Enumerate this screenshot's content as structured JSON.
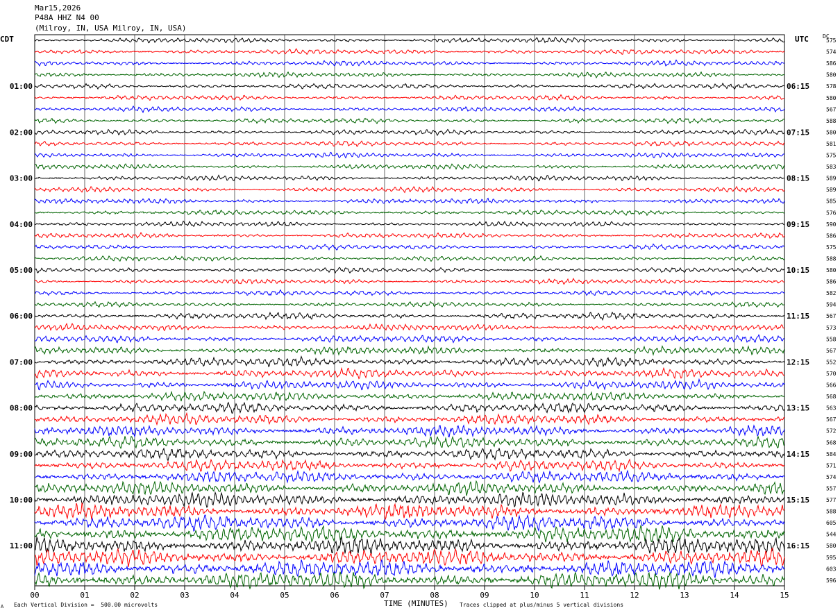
{
  "header": {
    "date": "Mar15,2026",
    "station": "P48A HHZ N4 00",
    "location": "(Milroy, IN, USA Milroy, IN, USA)"
  },
  "left_timezone": "CDT",
  "right_timezone": "UTC",
  "dc_label": "DC",
  "footer": {
    "scale_note": "Each Vertical Division =  500.00 microvolts",
    "clip_note": "Traces clipped at plus/minus 5 vertical divisions",
    "corner_mark": "A"
  },
  "chart_data": {
    "type": "line",
    "title": "",
    "xlabel": "TIME (MINUTES)",
    "ylabel": "",
    "xlim": [
      0,
      15
    ],
    "x_ticks": [
      "00",
      "01",
      "02",
      "03",
      "04",
      "05",
      "06",
      "07",
      "08",
      "09",
      "10",
      "11",
      "12",
      "13",
      "14",
      "15"
    ],
    "trace_colors": [
      "#000000",
      "#ff0000",
      "#0000ff",
      "#006400"
    ],
    "left_hour_labels": [
      "01:00",
      "02:00",
      "03:00",
      "04:00",
      "05:00",
      "06:00",
      "07:00",
      "08:00",
      "09:00",
      "10:00",
      "11:00"
    ],
    "right_hour_labels": [
      "06:15",
      "07:15",
      "08:15",
      "09:15",
      "10:15",
      "11:15",
      "12:15",
      "13:15",
      "14:15",
      "15:15",
      "16:15"
    ],
    "trace_dc_offsets": [
      "575",
      "574",
      "586",
      "580",
      "578",
      "580",
      "567",
      "588",
      "580",
      "581",
      "575",
      "583",
      "589",
      "589",
      "585",
      "576",
      "590",
      "586",
      "575",
      "588",
      "580",
      "586",
      "582",
      "594",
      "567",
      "573",
      "558",
      "567",
      "552",
      "570",
      "566",
      "568",
      "563",
      "567",
      "572",
      "568",
      "584",
      "571",
      "574",
      "557",
      "577",
      "588",
      "605",
      "544",
      "580",
      "595",
      "603",
      "596"
    ],
    "relative_amplitude_per_trace": [
      1,
      1,
      1,
      1,
      1,
      1,
      1,
      1,
      1,
      1,
      1,
      1,
      1,
      1,
      1,
      1,
      1,
      1,
      1,
      1,
      1,
      1,
      1,
      1,
      1.3,
      1.3,
      1.4,
      1.5,
      1.8,
      1.8,
      1.8,
      1.8,
      2,
      2,
      2.1,
      2.2,
      2.2,
      2.2,
      2.3,
      2.5,
      2.8,
      2.8,
      3,
      3.2,
      3.2,
      3.2,
      3.3,
      3.4
    ]
  }
}
